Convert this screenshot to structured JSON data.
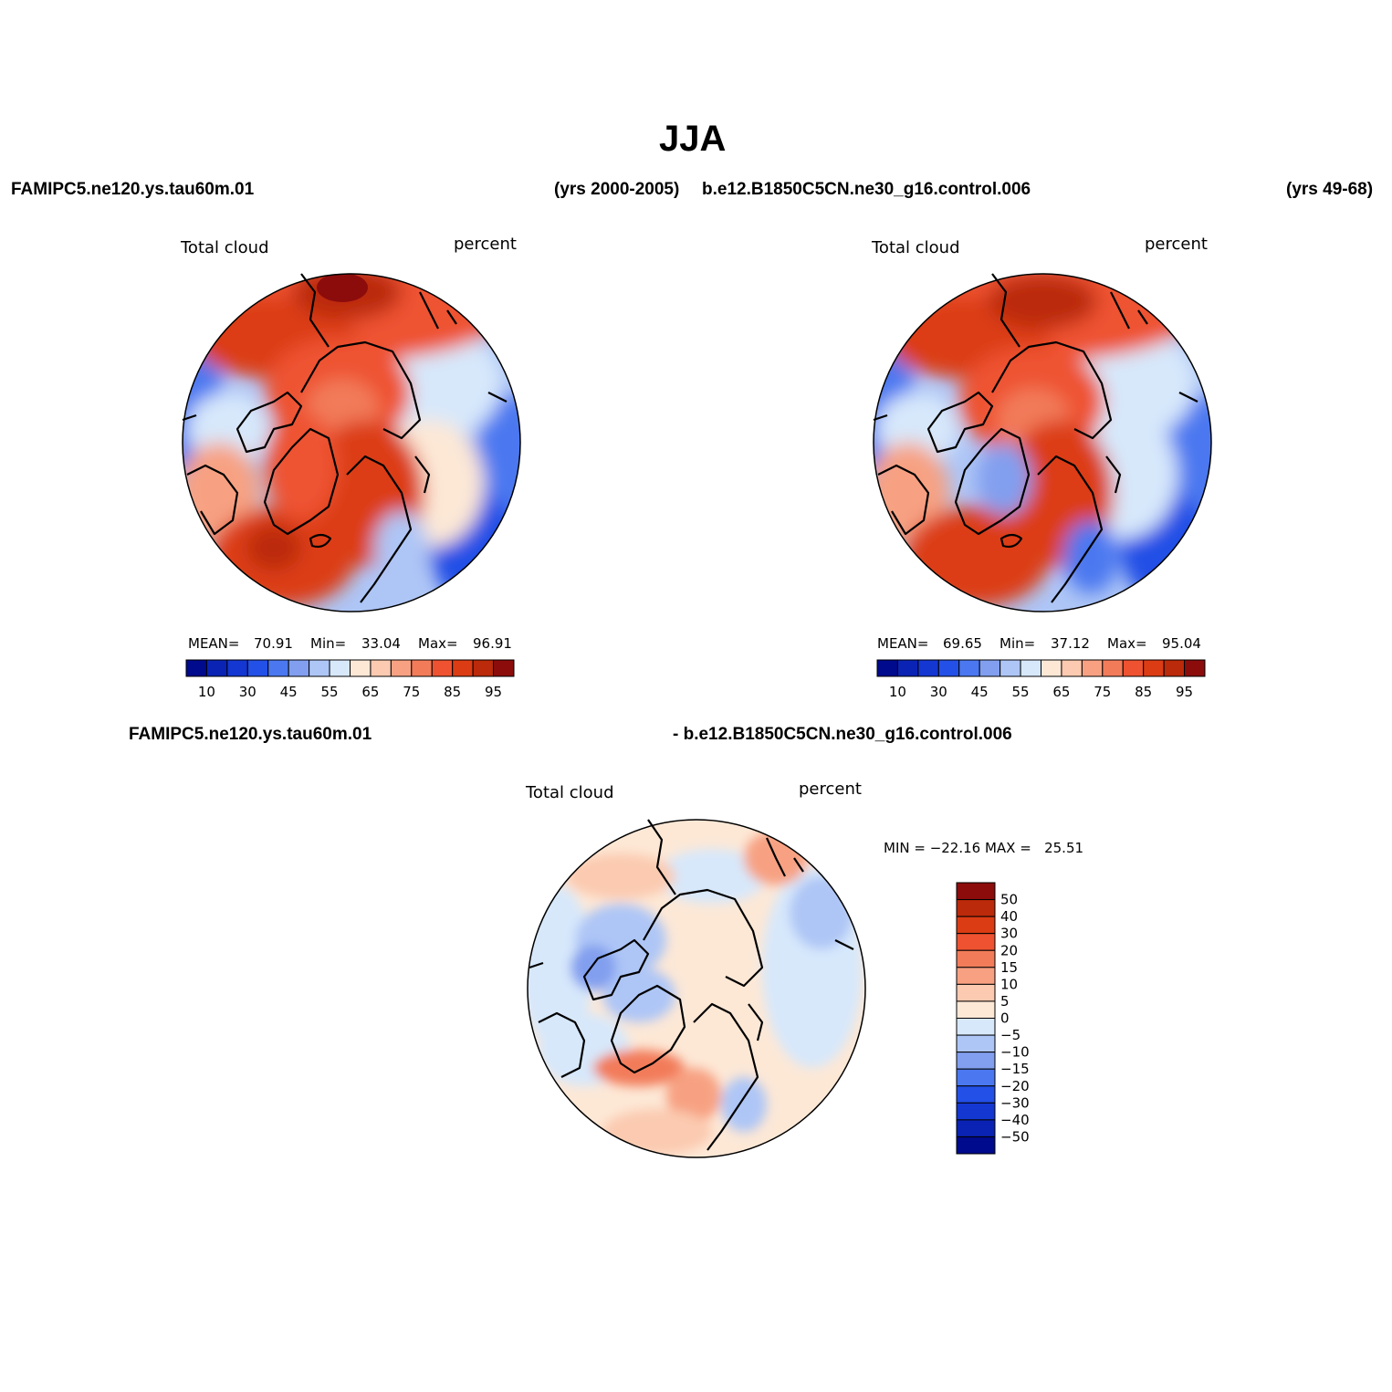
{
  "header": {
    "title": "JJA",
    "top_left_case": "FAMIPC5.ne120.ys.tau60m.01",
    "top_left_years": "(yrs 2000-2005)",
    "top_right_case": "b.e12.B1850C5CN.ne30_g16.control.006",
    "top_right_years": "(yrs 49-68)",
    "diff_left_case": "FAMIPC5.ne120.ys.tau60m.01",
    "diff_right_case": "- b.e12.B1850C5CN.ne30_g16.control.006"
  },
  "panels": [
    {
      "variable": "Total cloud",
      "units": "percent",
      "stats": {
        "mean_label": "MEAN=",
        "mean": "70.91",
        "min_label": "Min=",
        "min": "33.04",
        "max_label": "Max=",
        "max": "96.91"
      }
    },
    {
      "variable": "Total cloud",
      "units": "percent",
      "stats": {
        "mean_label": "MEAN=",
        "mean": "69.65",
        "min_label": "Min=",
        "min": "37.12",
        "max_label": "Max=",
        "max": "95.04"
      }
    },
    {
      "variable": "Total cloud",
      "units": "percent",
      "stats_text": "MIN = −22.16 MAX =   25.51"
    }
  ],
  "colorbar_abs": {
    "colors": [
      "#000a8c",
      "#0a23b4",
      "#1437d2",
      "#2350e6",
      "#4b78f0",
      "#829fef",
      "#aec6f6",
      "#d7e8fb",
      "#fde8d6",
      "#fbcab0",
      "#f7a182",
      "#f27c5a",
      "#ee5230",
      "#dc3c14",
      "#bb2a0a",
      "#8c0c0c"
    ],
    "tick_labels": [
      "10",
      "30",
      "45",
      "55",
      "65",
      "75",
      "85",
      "95"
    ]
  },
  "colorbar_diff": {
    "colors": [
      "#8c0c0c",
      "#bb2a0a",
      "#dc3c14",
      "#ee5230",
      "#f27c5a",
      "#f7a182",
      "#fbcab0",
      "#fde8d6",
      "#d7e8fb",
      "#aec6f6",
      "#829fef",
      "#4b78f0",
      "#2350e6",
      "#1437d2",
      "#0a23b4",
      "#000a8c"
    ],
    "tick_labels": [
      "50",
      "40",
      "30",
      "20",
      "15",
      "10",
      "5",
      "0",
      "−5",
      "−10",
      "−15",
      "−20",
      "−30",
      "−40",
      "−50"
    ]
  }
}
